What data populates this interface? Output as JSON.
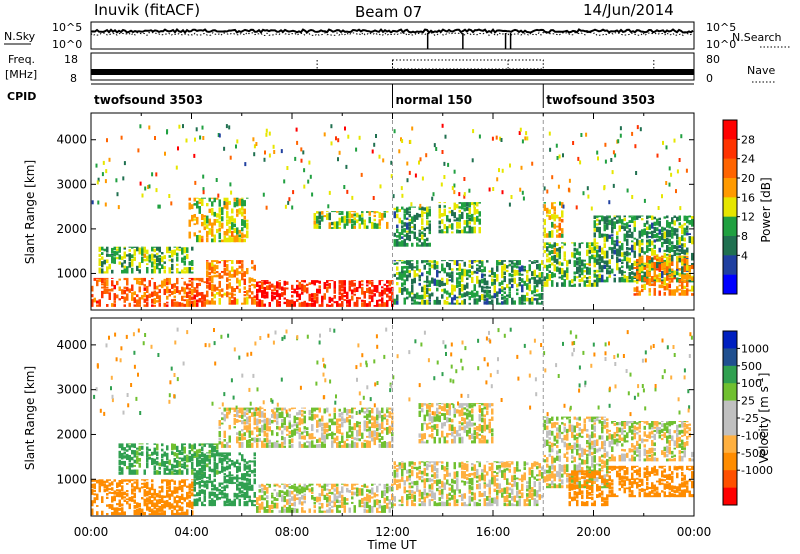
{
  "header": {
    "station": "Inuvik (fitACF)",
    "beam": "Beam 07",
    "date": "14/Jun/2014"
  },
  "nsky_panel": {
    "left_label": "N.Sky",
    "ticks_left": [
      "10^5",
      "10^0"
    ],
    "right_label": "N.Search",
    "ticks_right": [
      "10^5",
      "10^0"
    ]
  },
  "freq_panel": {
    "left_label_1": "Freq.",
    "left_label_2": "[MHz]",
    "ticks_left": [
      "18",
      "8"
    ],
    "right_label": "Nave",
    "ticks_right": [
      "80",
      "0"
    ]
  },
  "cpid_panel": {
    "label": "CPID",
    "segments": [
      {
        "name": "twofsound 3503",
        "start_h": 0,
        "end_h": 12
      },
      {
        "name": "normal 150",
        "start_h": 12,
        "end_h": 18
      },
      {
        "name": "twofsound 3503",
        "start_h": 18,
        "end_h": 24
      }
    ]
  },
  "x_axis": {
    "label": "Time UT",
    "ticks": [
      "00:00",
      "04:00",
      "08:00",
      "12:00",
      "16:00",
      "20:00",
      "00:00"
    ]
  },
  "colors": {
    "power": [
      "#0000ff",
      "#2040a0",
      "#207050",
      "#20a040",
      "#e6e600",
      "#ff9a00",
      "#ff6400",
      "#ff3300",
      "#ff0000"
    ],
    "velocity": [
      "#ff0000",
      "#ff5000",
      "#ff8c00",
      "#ffb040",
      "#c0c0c0",
      "#c0c0c0",
      "#70c030",
      "#30a050",
      "#205090",
      "#0020c0"
    ]
  },
  "chart_data": [
    {
      "type": "heatmap",
      "title": "",
      "xlabel": "",
      "ylabel": "Slant Range [km]",
      "xlim": [
        0,
        24
      ],
      "ylim": [
        180,
        4600
      ],
      "yticks": [
        "4000",
        "3000",
        "2000",
        "1000"
      ],
      "yticks_values": [
        4000,
        3000,
        2000,
        1000
      ],
      "colorbar": {
        "label": "Power [dB]",
        "ticks": [
          "28",
          "24",
          "20",
          "16",
          "12",
          "8",
          "4"
        ],
        "range": [
          0,
          30
        ]
      },
      "regions": [
        {
          "t0": 0.0,
          "t1": 4.5,
          "r0": 250,
          "r1": 900,
          "level": 24
        },
        {
          "t0": 4.5,
          "t1": 6.5,
          "r0": 300,
          "r1": 1300,
          "level": 20
        },
        {
          "t0": 6.5,
          "t1": 12.0,
          "r0": 250,
          "r1": 850,
          "level": 28
        },
        {
          "t0": 0.2,
          "t1": 4.0,
          "r0": 1000,
          "r1": 1600,
          "level": 12
        },
        {
          "t0": 3.8,
          "t1": 6.2,
          "r0": 1700,
          "r1": 2700,
          "level": 16
        },
        {
          "t0": 8.8,
          "t1": 11.8,
          "r0": 2000,
          "r1": 2400,
          "level": 14
        },
        {
          "t0": 12.0,
          "t1": 13.5,
          "r0": 1600,
          "r1": 2500,
          "level": 10
        },
        {
          "t0": 13.8,
          "t1": 15.5,
          "r0": 1900,
          "r1": 2600,
          "level": 12
        },
        {
          "t0": 12.0,
          "t1": 18.0,
          "r0": 300,
          "r1": 1300,
          "level": 10
        },
        {
          "t0": 18.0,
          "t1": 20.2,
          "r0": 700,
          "r1": 1700,
          "level": 12
        },
        {
          "t0": 18.0,
          "t1": 18.8,
          "r0": 1800,
          "r1": 2600,
          "level": 16
        },
        {
          "t0": 20.0,
          "t1": 24.0,
          "r0": 800,
          "r1": 2300,
          "level": 10
        },
        {
          "t0": 21.5,
          "t1": 24.0,
          "r0": 500,
          "r1": 1400,
          "level": 20
        }
      ]
    },
    {
      "type": "heatmap",
      "title": "",
      "xlabel": "Time UT",
      "ylabel": "Slant Range [km]",
      "xlim": [
        0,
        24
      ],
      "ylim": [
        180,
        4600
      ],
      "yticks": [
        "4000",
        "3000",
        "2000",
        "1000"
      ],
      "yticks_values": [
        4000,
        3000,
        2000,
        1000
      ],
      "colorbar": {
        "label": "Velocity [m s^-1]",
        "ticks": [
          "1000",
          "500",
          "100",
          "25",
          "-25",
          "-100",
          "-500",
          "-1000"
        ]
      },
      "regions": [
        {
          "t0": 0.0,
          "t1": 4.0,
          "r0": 200,
          "r1": 1000,
          "velocity": -300
        },
        {
          "t0": 1.0,
          "t1": 5.0,
          "r0": 1100,
          "r1": 1800,
          "velocity": 150
        },
        {
          "t0": 4.0,
          "t1": 6.5,
          "r0": 400,
          "r1": 1600,
          "velocity": 200
        },
        {
          "t0": 6.5,
          "t1": 12.0,
          "r0": 250,
          "r1": 900,
          "velocity": 0
        },
        {
          "t0": 5.0,
          "t1": 12.0,
          "r0": 1700,
          "r1": 2600,
          "velocity": 0
        },
        {
          "t0": 12.0,
          "t1": 18.0,
          "r0": 400,
          "r1": 1400,
          "velocity": 0
        },
        {
          "t0": 13.0,
          "t1": 16.0,
          "r0": 1800,
          "r1": 2700,
          "velocity": 0
        },
        {
          "t0": 18.0,
          "t1": 20.5,
          "r0": 800,
          "r1": 2400,
          "velocity": 0
        },
        {
          "t0": 19.0,
          "t1": 20.5,
          "r0": 400,
          "r1": 1200,
          "velocity": -400
        },
        {
          "t0": 20.5,
          "t1": 24.0,
          "r0": 600,
          "r1": 1300,
          "velocity": -200
        },
        {
          "t0": 20.5,
          "t1": 24.0,
          "r0": 1400,
          "r1": 2300,
          "velocity": 0
        }
      ]
    }
  ]
}
